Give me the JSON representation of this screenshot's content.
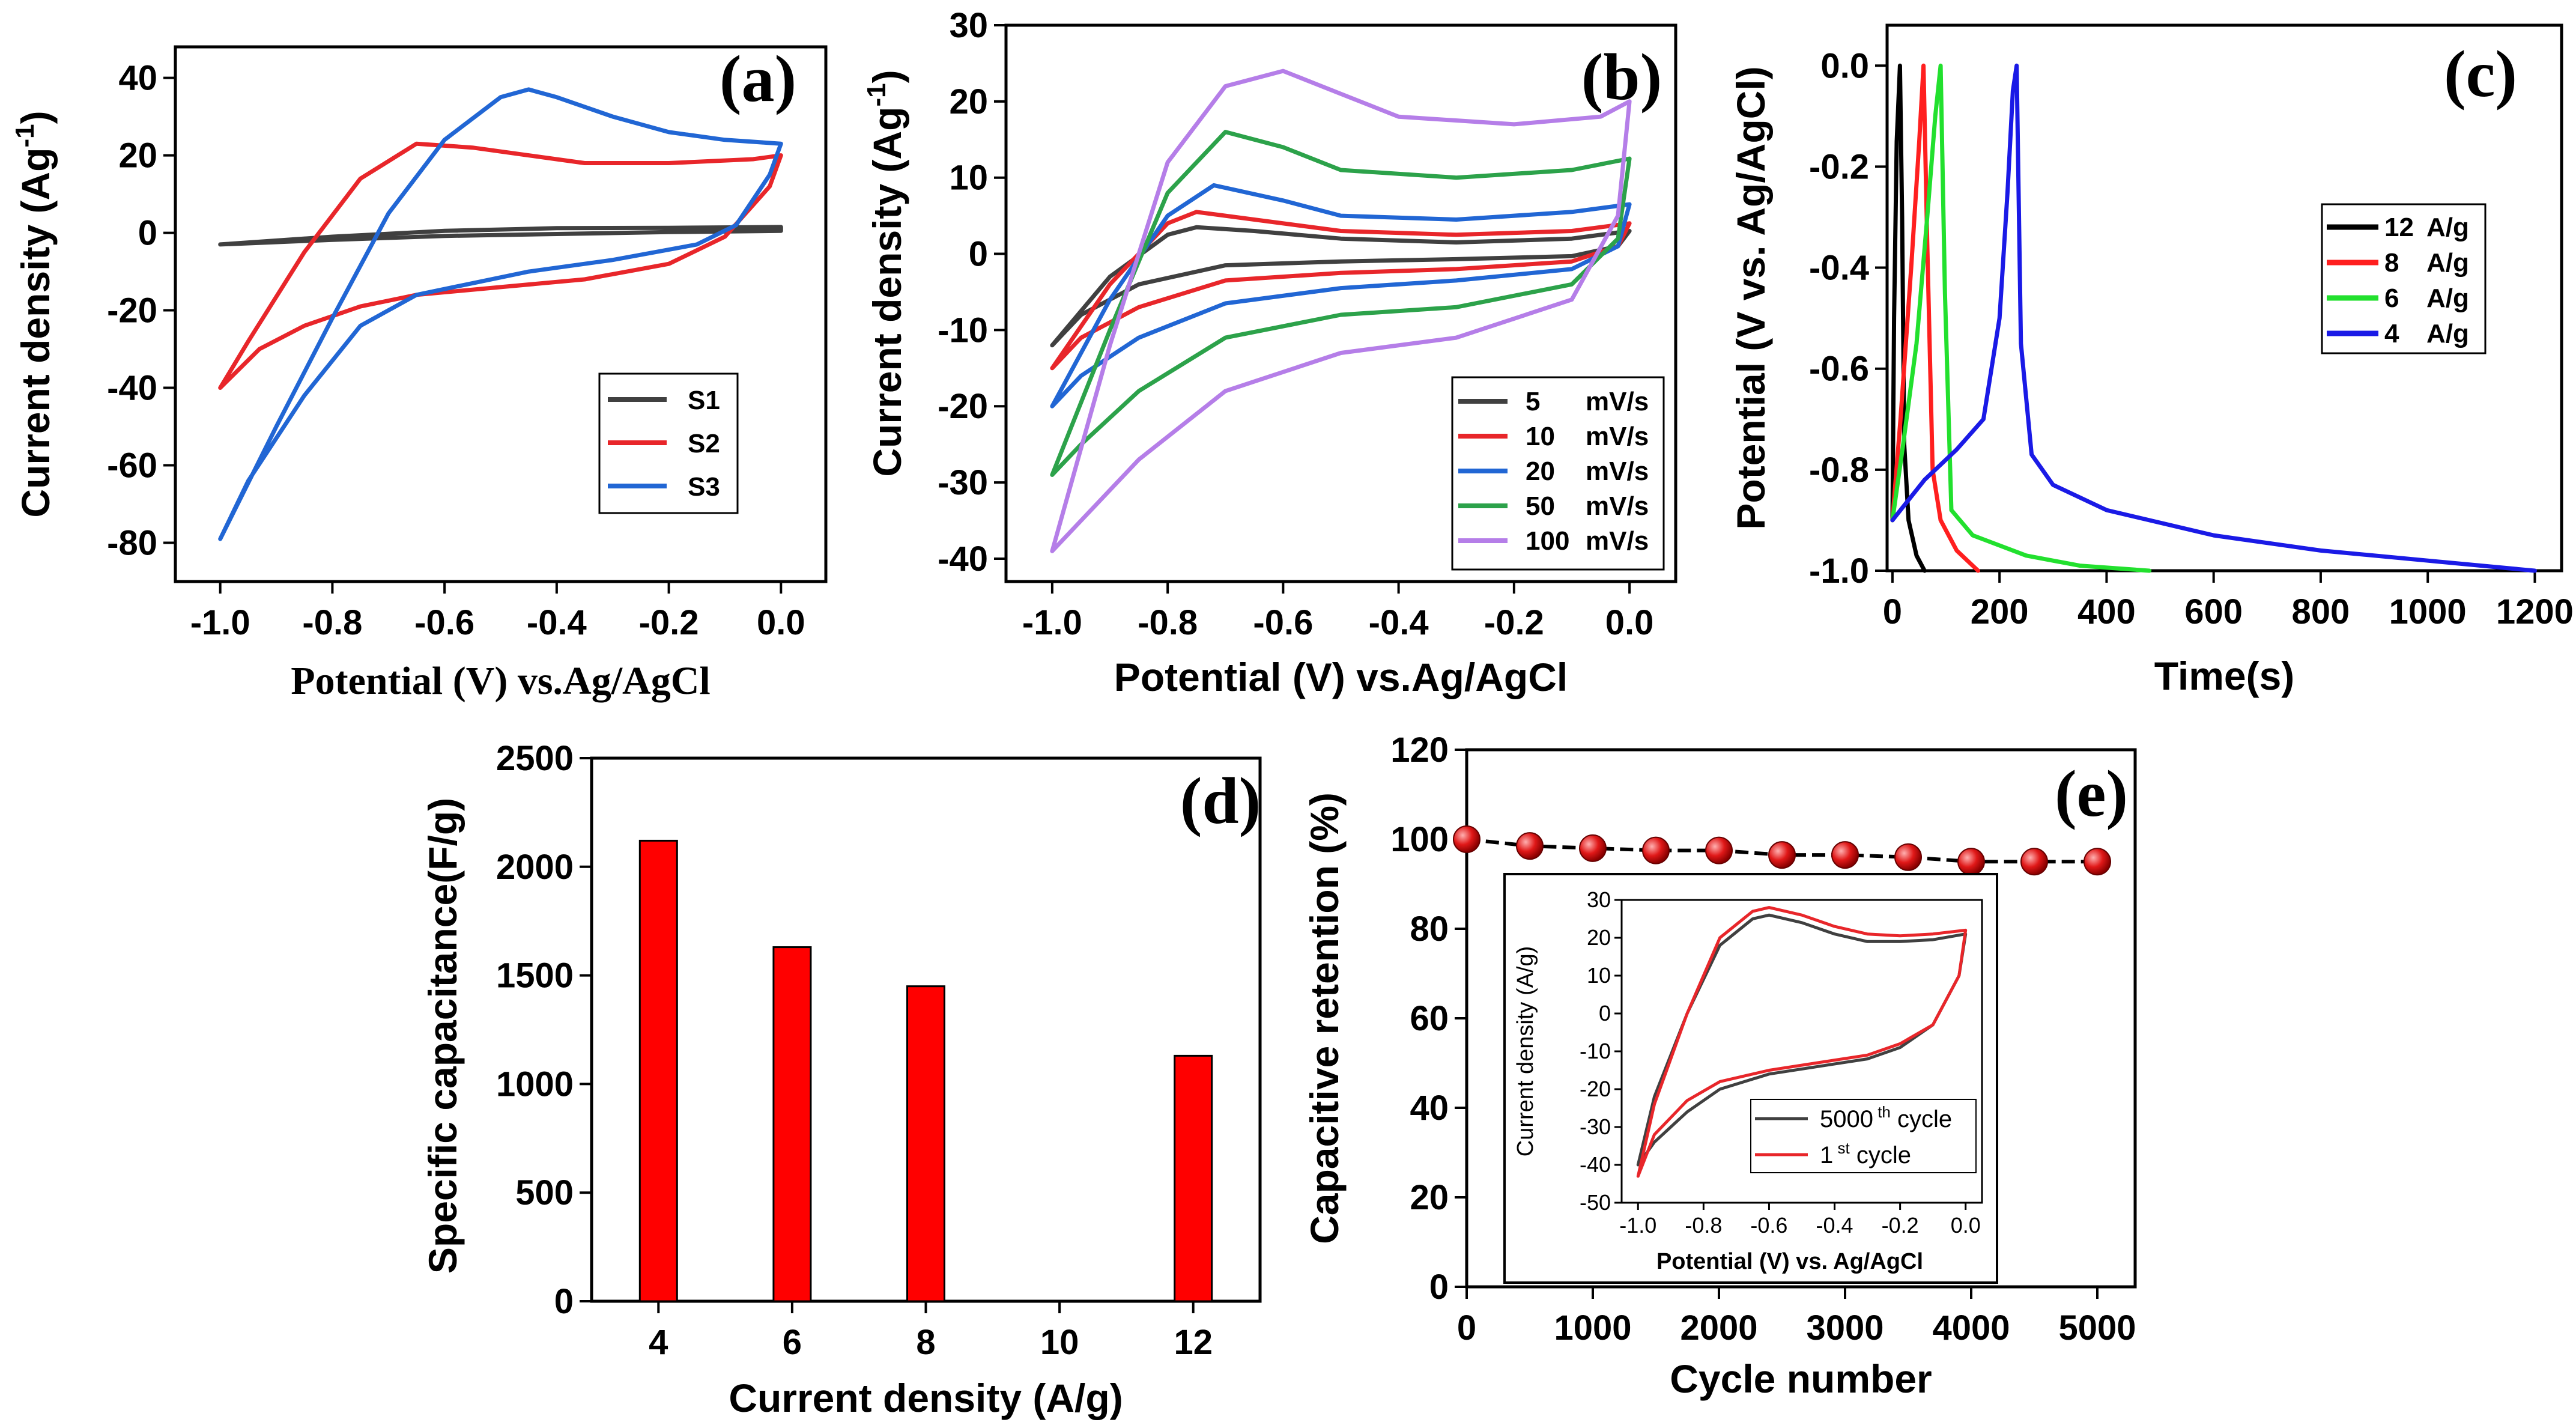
{
  "chart_data": [
    {
      "panel": "(a)",
      "type": "line",
      "xlabel": "Potential (V) vs.Ag/AgCl",
      "ylabel": "Current density (Ag",
      "ylabel_sup": "-1",
      "ylabel_close": ")",
      "xlim": [
        -1.08,
        0.08
      ],
      "ylim": [
        -90,
        48
      ],
      "xticks": [
        -1.0,
        -0.8,
        -0.6,
        -0.4,
        -0.2,
        0.0
      ],
      "xtick_labels": [
        "-1.0",
        "-0.8",
        "-0.6",
        "-0.4",
        "-0.2",
        "0.0"
      ],
      "yticks": [
        -80,
        -60,
        -40,
        -20,
        0,
        20,
        40
      ],
      "ytick_labels": [
        "-80",
        "-60",
        "-40",
        "-20",
        "0",
        "20",
        "40"
      ],
      "legend": {
        "position": "lower-right",
        "entries": [
          "S1",
          "S2",
          "S3"
        ]
      },
      "series": [
        {
          "name": "S1",
          "color": "#404040",
          "x": [
            -1.0,
            -0.8,
            -0.6,
            -0.4,
            -0.2,
            0.0,
            0.0,
            -0.2,
            -0.4,
            -0.6,
            -0.8,
            -1.0
          ],
          "y": [
            -3,
            -1,
            0.5,
            1.2,
            1.3,
            1.5,
            0.5,
            0.2,
            -0.3,
            -0.8,
            -1.8,
            -3
          ]
        },
        {
          "name": "S2",
          "color": "#e8262a",
          "x": [
            -1.0,
            -0.95,
            -0.85,
            -0.75,
            -0.65,
            -0.55,
            -0.45,
            -0.35,
            -0.2,
            -0.05,
            0.0,
            -0.02,
            -0.1,
            -0.2,
            -0.35,
            -0.5,
            -0.65,
            -0.75,
            -0.85,
            -0.93,
            -1.0
          ],
          "y": [
            -40,
            -28,
            -5,
            14,
            23,
            22,
            20,
            18,
            18,
            19,
            20,
            12,
            -1,
            -8,
            -12,
            -14,
            -16,
            -19,
            -24,
            -30,
            -40
          ]
        },
        {
          "name": "S3",
          "color": "#2166d4",
          "x": [
            -1.0,
            -0.9,
            -0.8,
            -0.7,
            -0.6,
            -0.5,
            -0.45,
            -0.4,
            -0.3,
            -0.2,
            -0.1,
            0.0,
            -0.02,
            -0.08,
            -0.15,
            -0.3,
            -0.45,
            -0.55,
            -0.65,
            -0.75,
            -0.85,
            -0.95,
            -1.0
          ],
          "y": [
            -79,
            -50,
            -22,
            5,
            24,
            35,
            37,
            35,
            30,
            26,
            24,
            23,
            15,
            2,
            -3,
            -7,
            -10,
            -13,
            -16,
            -24,
            -42,
            -64,
            -79
          ]
        }
      ]
    },
    {
      "panel": "(b)",
      "type": "line",
      "xlabel": "Potential (V) vs.Ag/AgCl",
      "ylabel": "Current density (Ag",
      "ylabel_sup": "-1",
      "ylabel_close": ")",
      "xlim": [
        -1.08,
        0.08
      ],
      "ylim": [
        -43,
        30
      ],
      "xticks": [
        -1.0,
        -0.8,
        -0.6,
        -0.4,
        -0.2,
        0.0
      ],
      "xtick_labels": [
        "-1.0",
        "-0.8",
        "-0.6",
        "-0.4",
        "-0.2",
        "0.0"
      ],
      "yticks": [
        -40,
        -30,
        -20,
        -10,
        0,
        10,
        20,
        30
      ],
      "ytick_labels": [
        "-40",
        "-30",
        "-20",
        "-10",
        "0",
        "10",
        "20",
        "30"
      ],
      "legend": {
        "position": "lower-right",
        "entries": [
          {
            "value": "5",
            "unit": "mV/s"
          },
          {
            "value": "10",
            "unit": "mV/s"
          },
          {
            "value": "20",
            "unit": "mV/s"
          },
          {
            "value": "50",
            "unit": "mV/s"
          },
          {
            "value": "100",
            "unit": "mV/s"
          }
        ]
      },
      "series": [
        {
          "name": "5 mV/s",
          "color": "#404040",
          "x": [
            -1.0,
            -0.9,
            -0.8,
            -0.75,
            -0.65,
            -0.5,
            -0.3,
            -0.1,
            0.0,
            -0.02,
            -0.1,
            -0.3,
            -0.5,
            -0.7,
            -0.85,
            -0.95,
            -1.0
          ],
          "y": [
            -12,
            -3,
            2.5,
            3.5,
            3,
            2,
            1.5,
            2,
            3,
            1,
            -0.3,
            -0.7,
            -1,
            -1.5,
            -4,
            -8,
            -12
          ]
        },
        {
          "name": "10 mV/s",
          "color": "#e8262a",
          "x": [
            -1.0,
            -0.9,
            -0.8,
            -0.75,
            -0.65,
            -0.5,
            -0.3,
            -0.1,
            0.0,
            -0.02,
            -0.1,
            -0.3,
            -0.5,
            -0.7,
            -0.85,
            -0.95,
            -1.0
          ],
          "y": [
            -15,
            -4,
            4,
            5.5,
            4.5,
            3,
            2.5,
            3,
            4,
            1,
            -1,
            -2,
            -2.5,
            -3.5,
            -7,
            -11,
            -15
          ]
        },
        {
          "name": "20 mV/s",
          "color": "#2166d4",
          "x": [
            -1.0,
            -0.9,
            -0.8,
            -0.72,
            -0.6,
            -0.5,
            -0.3,
            -0.1,
            0.0,
            -0.02,
            -0.1,
            -0.3,
            -0.5,
            -0.7,
            -0.85,
            -0.95,
            -1.0
          ],
          "y": [
            -20,
            -6,
            5,
            9,
            7,
            5,
            4.5,
            5.5,
            6.5,
            1,
            -2,
            -3.5,
            -4.5,
            -6.5,
            -11,
            -16,
            -20
          ]
        },
        {
          "name": "50 mV/s",
          "color": "#2ca24a",
          "x": [
            -1.0,
            -0.9,
            -0.8,
            -0.7,
            -0.6,
            -0.5,
            -0.3,
            -0.1,
            0.0,
            -0.02,
            -0.1,
            -0.3,
            -0.5,
            -0.7,
            -0.85,
            -0.95,
            -1.0
          ],
          "y": [
            -29,
            -10,
            8,
            16,
            14,
            11,
            10,
            11,
            12.5,
            2,
            -4,
            -7,
            -8,
            -11,
            -18,
            -25,
            -29
          ]
        },
        {
          "name": "100 mV/s",
          "color": "#b57ee8",
          "x": [
            -1.0,
            -0.9,
            -0.8,
            -0.7,
            -0.6,
            -0.5,
            -0.4,
            -0.2,
            -0.05,
            0.0,
            -0.02,
            -0.1,
            -0.3,
            -0.5,
            -0.7,
            -0.85,
            -0.95,
            -1.0
          ],
          "y": [
            -39,
            -12,
            12,
            22,
            24,
            21,
            18,
            17,
            18,
            20,
            5,
            -6,
            -11,
            -13,
            -18,
            -27,
            -35,
            -39
          ]
        }
      ]
    },
    {
      "panel": "(c)",
      "type": "line",
      "xlabel": "Time(s)",
      "ylabel": "Potential (V vs. Ag/AgCl)",
      "xlim": [
        -10,
        1250
      ],
      "ylim": [
        -1.0,
        0.08
      ],
      "xticks": [
        0,
        200,
        400,
        600,
        800,
        1000,
        1200
      ],
      "xtick_labels": [
        "0",
        "200",
        "400",
        "600",
        "800",
        "1000",
        "1200"
      ],
      "yticks": [
        -1.0,
        -0.8,
        -0.6,
        -0.4,
        -0.2,
        0.0
      ],
      "ytick_labels": [
        "-1.0",
        "-0.8",
        "-0.6",
        "-0.4",
        "-0.2",
        "0.0"
      ],
      "legend": {
        "position": "top-right",
        "entries": [
          {
            "value": "12",
            "unit": "A/g"
          },
          {
            "value": "8",
            "unit": "A/g"
          },
          {
            "value": "6",
            "unit": "A/g"
          },
          {
            "value": "4",
            "unit": "A/g"
          }
        ]
      },
      "series": [
        {
          "name": "12 A/g",
          "color": "#000000",
          "x": [
            0,
            3,
            8,
            14,
            18,
            22,
            30,
            45,
            60
          ],
          "y": [
            -0.9,
            -0.5,
            -0.15,
            0.0,
            -0.3,
            -0.75,
            -0.9,
            -0.97,
            -1.0
          ]
        },
        {
          "name": "8 A/g",
          "color": "#ff1f1f",
          "x": [
            0,
            15,
            35,
            50,
            58,
            65,
            75,
            90,
            120,
            160
          ],
          "y": [
            -0.9,
            -0.7,
            -0.4,
            -0.15,
            0.0,
            -0.35,
            -0.8,
            -0.9,
            -0.96,
            -1.0
          ]
        },
        {
          "name": "6 A/g",
          "color": "#22e02e",
          "x": [
            0,
            20,
            45,
            65,
            80,
            90,
            98,
            110,
            150,
            250,
            350,
            480
          ],
          "y": [
            -0.9,
            -0.75,
            -0.55,
            -0.3,
            -0.1,
            0.0,
            -0.45,
            -0.88,
            -0.93,
            -0.97,
            -0.99,
            -1.0
          ]
        },
        {
          "name": "4 A/g",
          "color": "#1a1ae6",
          "x": [
            0,
            60,
            120,
            170,
            200,
            215,
            225,
            232,
            240,
            260,
            300,
            400,
            600,
            800,
            1000,
            1200
          ],
          "y": [
            -0.9,
            -0.82,
            -0.76,
            -0.7,
            -0.5,
            -0.25,
            -0.05,
            0.0,
            -0.55,
            -0.77,
            -0.83,
            -0.88,
            -0.93,
            -0.96,
            -0.98,
            -1.0
          ]
        }
      ]
    },
    {
      "panel": "(d)",
      "type": "bar",
      "xlabel": "Current density (A/g)",
      "ylabel": "Specific capacitance(F/g)",
      "categories": [
        "4",
        "6",
        "8",
        "10",
        "12"
      ],
      "values": [
        2120,
        1630,
        1450,
        null,
        1130
      ],
      "bar_color": "#ff0000",
      "ylim": [
        0,
        2500
      ],
      "yticks": [
        0,
        500,
        1000,
        1500,
        2000,
        2500
      ],
      "ytick_labels": [
        "0",
        "500",
        "1000",
        "1500",
        "2000",
        "2500"
      ]
    },
    {
      "panel": "(e)",
      "type": "scatter",
      "xlabel": "Cycle number",
      "ylabel": "Capacitive retention (%)",
      "xlim": [
        0,
        5300
      ],
      "ylim": [
        0,
        120
      ],
      "xticks": [
        0,
        1000,
        2000,
        3000,
        4000,
        5000
      ],
      "xtick_labels": [
        "0",
        "1000",
        "2000",
        "3000",
        "4000",
        "5000"
      ],
      "yticks": [
        0,
        20,
        40,
        60,
        80,
        100,
        120
      ],
      "ytick_labels": [
        "0",
        "20",
        "40",
        "60",
        "80",
        "100",
        "120"
      ],
      "series": [
        {
          "name": "retention",
          "color": "#e01818",
          "x": [
            0,
            500,
            1000,
            1500,
            2000,
            2500,
            3000,
            3500,
            4000,
            4500,
            5000
          ],
          "y": [
            100,
            98.5,
            98,
            97.5,
            97.5,
            96.5,
            96.5,
            96,
            95,
            95,
            95
          ]
        }
      ],
      "inset": {
        "type": "line",
        "xlabel": "Potential (V) vs. Ag/AgCl",
        "ylabel": "Current density (A/g)",
        "xlim": [
          -1.05,
          0.05
        ],
        "ylim": [
          -50,
          30
        ],
        "xticks": [
          -1.0,
          -0.8,
          -0.6,
          -0.4,
          -0.2,
          0.0
        ],
        "xtick_labels": [
          "-1.0",
          "-0.8",
          "-0.6",
          "-0.4",
          "-0.2",
          "0.0"
        ],
        "yticks": [
          -50,
          -40,
          -30,
          -20,
          -10,
          0,
          10,
          20,
          30
        ],
        "ytick_labels": [
          "-50",
          "-40",
          "-30",
          "-20",
          "-10",
          "0",
          "10",
          "20",
          "30"
        ],
        "legend": {
          "position": "lower-right",
          "entries": [
            {
              "label": "5000",
              "sup": "th",
              "suffix": " cycle"
            },
            {
              "label": "1",
              "sup": "st",
              "suffix": "  cycle"
            }
          ]
        },
        "series": [
          {
            "name": "5000th cycle",
            "color": "#404040",
            "x": [
              -1.0,
              -0.95,
              -0.85,
              -0.75,
              -0.65,
              -0.6,
              -0.5,
              -0.4,
              -0.3,
              -0.2,
              -0.1,
              0.0,
              -0.02,
              -0.1,
              -0.2,
              -0.3,
              -0.45,
              -0.6,
              -0.75,
              -0.85,
              -0.95,
              -1.0
            ],
            "y": [
              -40,
              -22,
              0,
              18,
              25,
              26,
              24,
              21,
              19,
              19,
              19.5,
              21,
              10,
              -3,
              -9,
              -12,
              -14,
              -16,
              -20,
              -26,
              -34,
              -40
            ]
          },
          {
            "name": "1st cycle",
            "color": "#e8262a",
            "x": [
              -1.0,
              -0.95,
              -0.85,
              -0.75,
              -0.65,
              -0.6,
              -0.5,
              -0.4,
              -0.3,
              -0.2,
              -0.1,
              0.0,
              -0.02,
              -0.1,
              -0.2,
              -0.3,
              -0.45,
              -0.6,
              -0.75,
              -0.85,
              -0.95,
              -1.0
            ],
            "y": [
              -43,
              -24,
              0,
              20,
              27,
              28,
              26,
              23,
              21,
              20.5,
              21,
              22,
              10,
              -3,
              -8,
              -11,
              -13,
              -15,
              -18,
              -23,
              -32,
              -43
            ]
          }
        ]
      }
    }
  ],
  "panel_labels": [
    "(a)",
    "(b)",
    "(c)",
    "(d)",
    "(e)"
  ]
}
